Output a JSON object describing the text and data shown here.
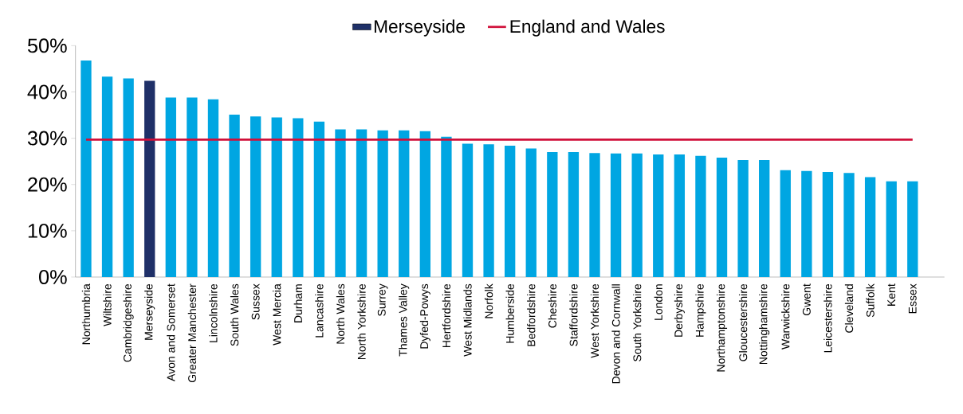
{
  "chart_data": {
    "type": "bar",
    "categories": [
      "Northumbria",
      "Wiltshire",
      "Cambridgeshire",
      "Merseyside",
      "Avon and Somerset",
      "Greater Manchester",
      "Lincolnshire",
      "South Wales",
      "Sussex",
      "West Mercia",
      "Durham",
      "Lancashire",
      "North Wales",
      "North Yorkshire",
      "Surrey",
      "Thames Valley",
      "Dyfed-Powys",
      "Hertfordshire",
      "West Midlands",
      "Norfolk",
      "Humberside",
      "Bedfordshire",
      "Cheshire",
      "Staffordshire",
      "West Yorkshire",
      "Devon and Cornwall",
      "South Yorkshire",
      "London",
      "Derbyshire",
      "Hampshire",
      "Northamptonshire",
      "Gloucestershire",
      "Nottinghamshire",
      "Warwickshire",
      "Gwent",
      "Leicestershire",
      "Cleveland",
      "Suffolk",
      "Kent",
      "Essex",
      null
    ],
    "series": [
      {
        "color": "#00a6e2",
        "values": [
          46.8,
          43.3,
          42.9,
          null,
          38.8,
          38.8,
          38.4,
          35.1,
          34.7,
          34.5,
          34.3,
          33.6,
          31.9,
          31.9,
          31.7,
          31.7,
          31.5,
          30.3,
          28.8,
          28.7,
          28.4,
          27.8,
          27.0,
          27.0,
          26.8,
          26.7,
          26.7,
          26.5,
          26.5,
          26.2,
          25.8,
          25.3,
          25.3,
          23.1,
          22.9,
          22.7,
          22.5,
          21.6,
          20.7,
          20.7,
          null
        ]
      },
      {
        "name": "Merseyside",
        "color": "#1f3068",
        "values": [
          null,
          null,
          null,
          42.4,
          null,
          null,
          null,
          null,
          null,
          null,
          null,
          null,
          null,
          null,
          null,
          null,
          null,
          null,
          null,
          null,
          null,
          null,
          null,
          null,
          null,
          null,
          null,
          null,
          null,
          null,
          null,
          null,
          null,
          null,
          null,
          null,
          null,
          null,
          null,
          null,
          null
        ]
      },
      {
        "type": "line",
        "name": "England and Wales",
        "color": "#d0103a",
        "values": [
          29.7,
          29.7,
          29.7,
          29.7,
          29.7,
          29.7,
          29.7,
          29.7,
          29.7,
          29.7,
          29.7,
          29.7,
          29.7,
          29.7,
          29.7,
          29.7,
          29.7,
          29.7,
          29.7,
          29.7,
          29.7,
          29.7,
          29.7,
          29.7,
          29.7,
          29.7,
          29.7,
          29.7,
          29.7,
          29.7,
          29.7,
          29.7,
          29.7,
          29.7,
          29.7,
          29.7,
          29.7,
          29.7,
          29.7,
          29.7,
          null
        ]
      }
    ],
    "ylim": [
      0,
      50
    ],
    "yticks": [
      {
        "value": 0,
        "label": "0%"
      },
      {
        "value": 10,
        "label": "10%"
      },
      {
        "value": 20,
        "label": "20%"
      },
      {
        "value": 30,
        "label": "30%"
      },
      {
        "value": 40,
        "label": "40%"
      },
      {
        "value": 50,
        "label": "50%"
      }
    ],
    "legend": "top",
    "marker": "none",
    "line_style": "solid"
  }
}
